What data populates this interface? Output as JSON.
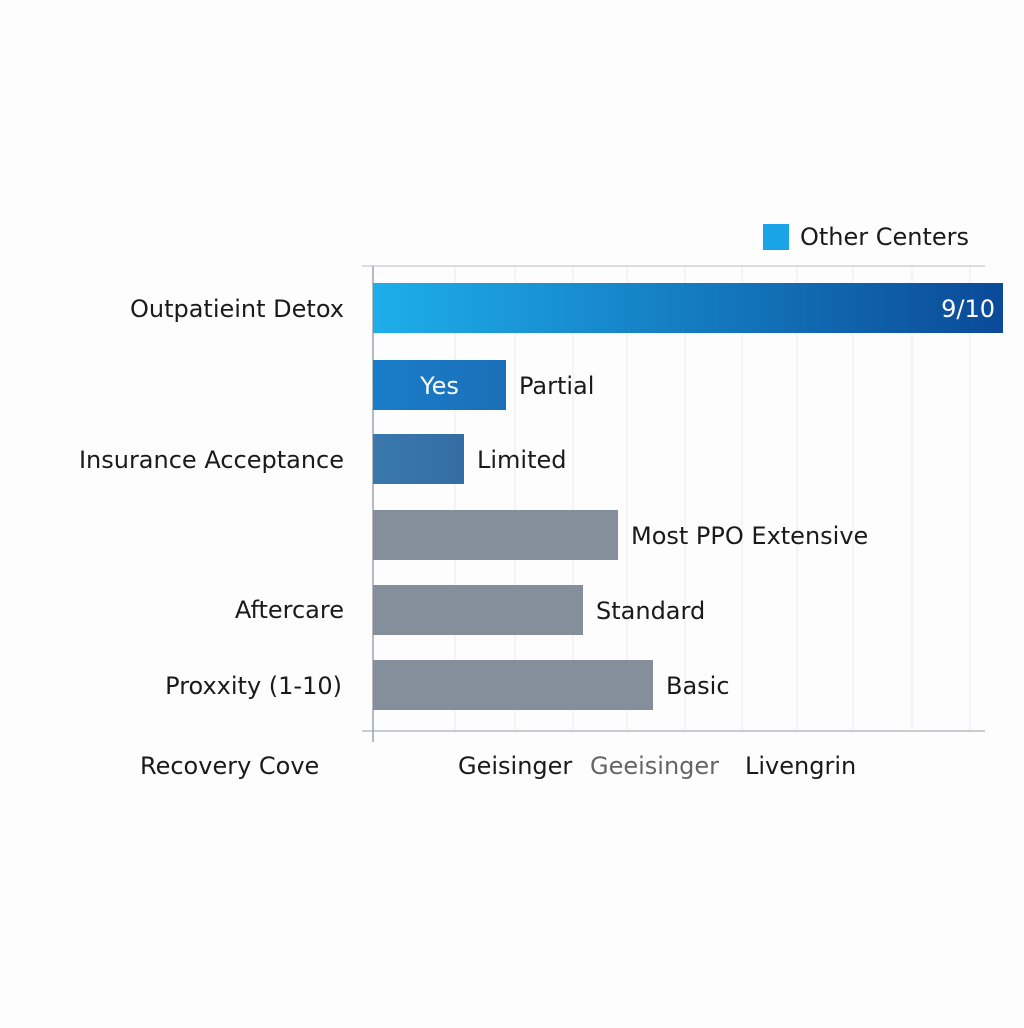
{
  "chart_data": {
    "type": "bar",
    "orientation": "horizontal",
    "title": "",
    "xlabel": "",
    "ylabel": "",
    "grid": true,
    "legend": {
      "position": "top-right",
      "entries": [
        {
          "name": "Other Centers",
          "color": "#1aa3e6"
        }
      ]
    },
    "y_tick_labels": [
      "Outpatieint Detox",
      "Insurance Acceptance",
      "Aftercare",
      "Proxxity (1-10)"
    ],
    "x_tick_labels": [
      "Recovery Cove",
      "Geisinger",
      "Geeisinger",
      "Livengrin"
    ],
    "bars": [
      {
        "value": 9,
        "label": "9/10",
        "label_inside": true,
        "color_start": "#1eaeea",
        "color_end": "#0b4a98"
      },
      {
        "value": 1.9,
        "label": "Partial",
        "inner_label": "Yes",
        "color_start": "#1a7dc9",
        "color_end": "#1b6fb8"
      },
      {
        "value": 1.3,
        "label": "Limited",
        "color_start": "#3a78ae",
        "color_end": "#336da3"
      },
      {
        "value": 3.5,
        "label": "Most PPO Extensive",
        "color_start": "#858f9b",
        "color_end": "#858f9b"
      },
      {
        "value": 3.0,
        "label": "Standard",
        "color_start": "#858f9b",
        "color_end": "#858f9b"
      },
      {
        "value": 4.0,
        "label": "Basic",
        "color_start": "#858f9b",
        "color_end": "#858f9b"
      }
    ],
    "xlim": [
      0,
      9
    ]
  }
}
